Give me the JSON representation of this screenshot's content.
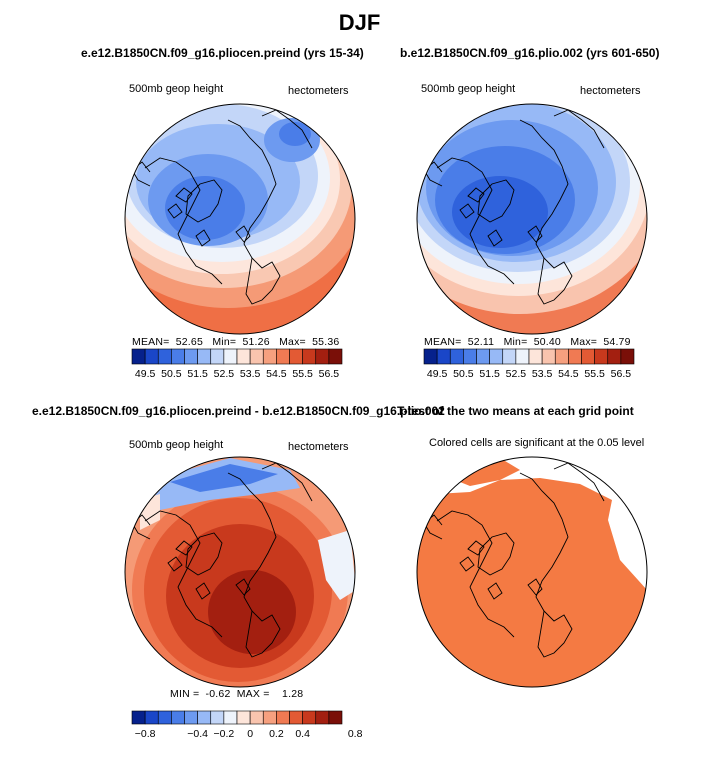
{
  "figure": {
    "title": "DJF"
  },
  "chart_data": [
    {
      "type": "heatmap",
      "projection": "north-polar-stereographic",
      "title": "e.e12.B1850CN.f09_g16.pliocen.preind (yrs 15-34)",
      "left_label": "500mb geop height",
      "right_label": "hectometers",
      "stats": {
        "mean_label": "MEAN=",
        "mean": "52.65",
        "min_label": "Min=",
        "min": "51.26",
        "max_label": "Max=",
        "max": "55.36"
      },
      "colorbar": {
        "levels": [
          49.5,
          50.0,
          50.5,
          51.0,
          51.5,
          52.0,
          52.5,
          53.0,
          53.5,
          54.0,
          54.5,
          55.0,
          55.5,
          56.0,
          56.5
        ],
        "tick_labels": [
          "49.5",
          "50.5",
          "51.5",
          "52.5",
          "53.5",
          "54.5",
          "55.5",
          "56.5"
        ],
        "colors": [
          "#06218c",
          "#1a46c8",
          "#2f62dc",
          "#4a7de8",
          "#6d9af0",
          "#97b9f6",
          "#c3d6f8",
          "#eef3fb",
          "#fde5da",
          "#f9c4ae",
          "#f6a07f",
          "#f07a53",
          "#e35a34",
          "#c8391d",
          "#a31f10",
          "#7a0f08"
        ]
      }
    },
    {
      "type": "heatmap",
      "projection": "north-polar-stereographic",
      "title": "b.e12.B1850CN.f09_g16.plio.002 (yrs 601-650)",
      "left_label": "500mb geop height",
      "right_label": "hectometers",
      "stats": {
        "mean_label": "MEAN=",
        "mean": "52.11",
        "min_label": "Min=",
        "min": "50.40",
        "max_label": "Max=",
        "max": "54.79"
      },
      "colorbar": {
        "levels": [
          49.5,
          50.0,
          50.5,
          51.0,
          51.5,
          52.0,
          52.5,
          53.0,
          53.5,
          54.0,
          54.5,
          55.0,
          55.5,
          56.0,
          56.5
        ],
        "tick_labels": [
          "49.5",
          "50.5",
          "51.5",
          "52.5",
          "53.5",
          "54.5",
          "55.5",
          "56.5"
        ],
        "colors": [
          "#06218c",
          "#1a46c8",
          "#2f62dc",
          "#4a7de8",
          "#6d9af0",
          "#97b9f6",
          "#c3d6f8",
          "#eef3fb",
          "#fde5da",
          "#f9c4ae",
          "#f6a07f",
          "#f07a53",
          "#e35a34",
          "#c8391d",
          "#a31f10",
          "#7a0f08"
        ]
      }
    },
    {
      "type": "heatmap",
      "projection": "north-polar-stereographic",
      "title": "e.e12.B1850CN.f09_g16.pliocen.preind - b.e12.B1850CN.f09_g16.plio.002",
      "left_label": "500mb geop height",
      "right_label": "hectometers",
      "stats": {
        "min_label": "MIN =",
        "min": "-0.62",
        "max_label": "MAX =",
        "max": "1.28"
      },
      "colorbar": {
        "levels": [
          -0.8,
          -0.7,
          -0.6,
          -0.5,
          -0.4,
          -0.3,
          -0.2,
          -0.1,
          0,
          0.1,
          0.2,
          0.3,
          0.4,
          0.5,
          0.6,
          0.7,
          0.8
        ],
        "tick_labels": [
          "-0.8",
          "-0.4",
          "-0.2",
          "0",
          "0.2",
          "0.4",
          "0.8"
        ],
        "colors": [
          "#06218c",
          "#1a46c8",
          "#2f62dc",
          "#4a7de8",
          "#6d9af0",
          "#97b9f6",
          "#c3d6f8",
          "#eef3fb",
          "#fde5da",
          "#f9c4ae",
          "#f6a07f",
          "#f07a53",
          "#e35a34",
          "#c8391d",
          "#a31f10",
          "#7a0f08"
        ]
      }
    },
    {
      "type": "heatmap",
      "projection": "north-polar-stereographic",
      "title": "T-test of the two means at each grid point",
      "left_label": "Colored cells are significant at the 0.05 level",
      "significance_level": 0.05,
      "fill_color": "#f47a43"
    }
  ]
}
